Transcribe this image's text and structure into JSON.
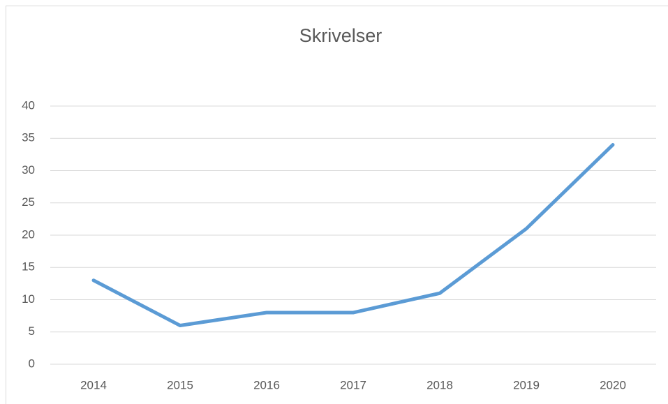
{
  "chart_data": {
    "type": "line",
    "title": "Skrivelser",
    "categories": [
      "2014",
      "2015",
      "2016",
      "2017",
      "2018",
      "2019",
      "2020"
    ],
    "series": [
      {
        "name": "Skrivelser",
        "color": "#5b9bd5",
        "values": [
          13,
          6,
          8,
          8,
          11,
          21,
          34
        ]
      }
    ],
    "ylim": [
      0,
      40
    ],
    "yticks": [
      0,
      5,
      10,
      15,
      20,
      25,
      30,
      35,
      40
    ],
    "grid": true
  }
}
